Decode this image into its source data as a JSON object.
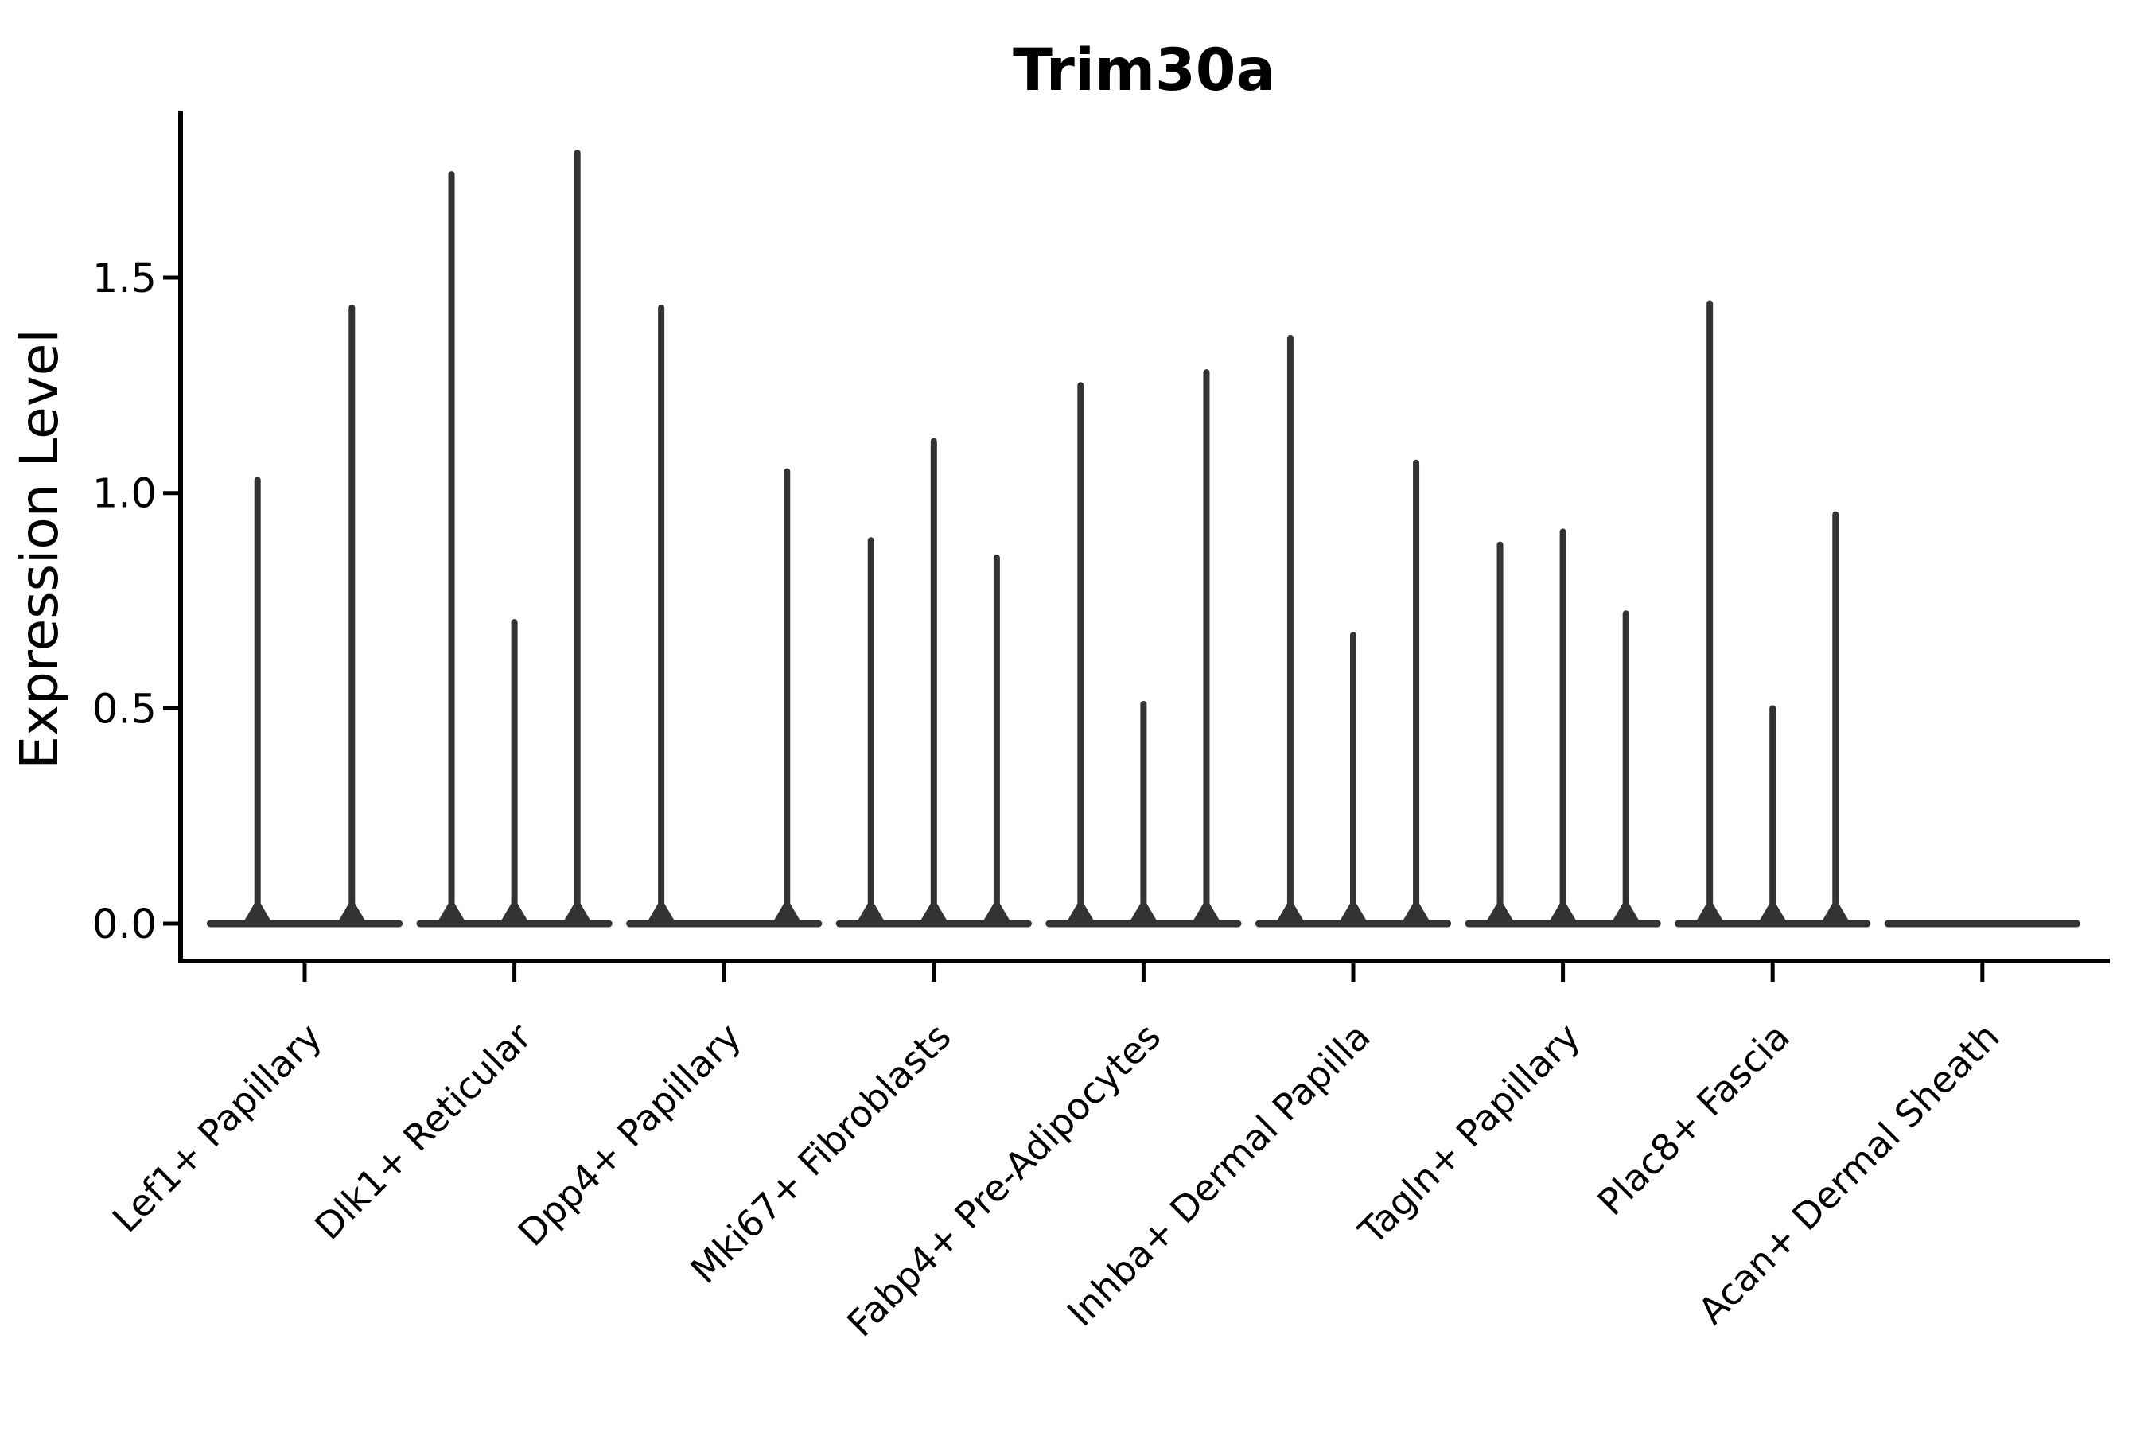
{
  "chart_data": {
    "type": "violin",
    "title": "Trim30a",
    "ylabel": "Expression Level",
    "xlabel": "",
    "ylim": [
      0,
      1.88
    ],
    "yticks": [
      0,
      0.5,
      1,
      1.5
    ],
    "ytick_labels": [
      "0.0",
      "0.5",
      "1.0",
      "1.5"
    ],
    "grid": false,
    "legend": false,
    "categories": [
      "Lef1+ Papillary",
      "Dlk1+ Reticular",
      "Dpp4+ Papillary",
      "Mki67+ Fibroblasts",
      "Fabp4+ Pre-Adipocytes",
      "Inhba+ Dermal Papilla",
      "Tagln+ Papillary",
      "Plac8+ Fascia",
      "Acan+ Dermal Sheath"
    ],
    "violins_note": "each category holds the peak expression of its dodged spike-violins, left to right; 0 means a flat violin lying on the baseline",
    "violins": [
      [
        1.03,
        1.43
      ],
      [
        1.74,
        0.7,
        1.79
      ],
      [
        1.43,
        0,
        1.05
      ],
      [
        0.89,
        1.12,
        0.85
      ],
      [
        1.25,
        0.51,
        1.28
      ],
      [
        1.36,
        0.67,
        1.07
      ],
      [
        0.88,
        0.91,
        0.72
      ],
      [
        1.44,
        0.5,
        0.95
      ],
      [
        0,
        0,
        0
      ]
    ],
    "colors": {
      "violin": "#333333",
      "axis": "#000000",
      "text": "#000000",
      "background": "#ffffff"
    }
  }
}
